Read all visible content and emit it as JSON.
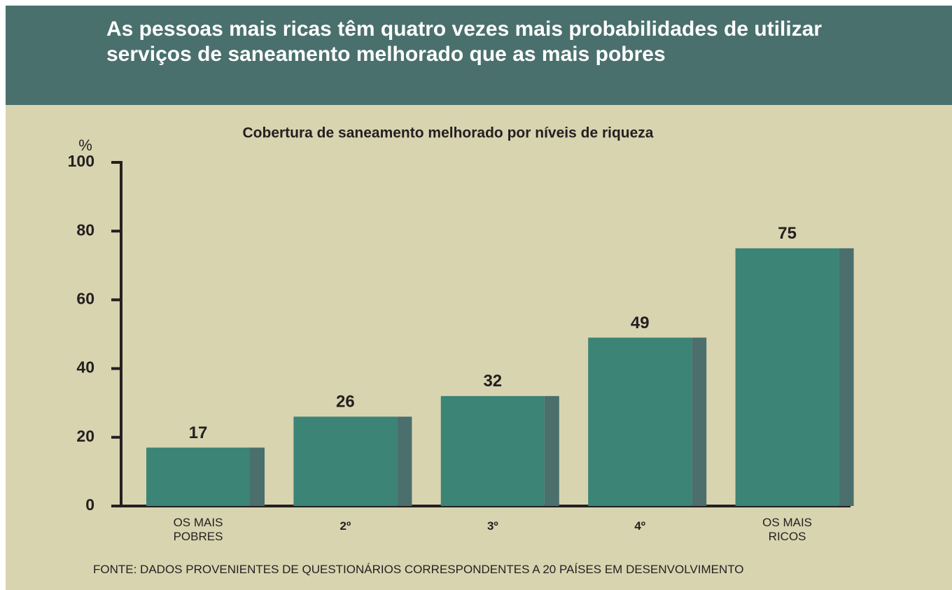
{
  "chart_data": {
    "type": "bar",
    "title": "As pessoas mais ricas têm quatro vezes mais probabilidades de utilizar serviços de saneamento melhorado que as mais pobres",
    "subtitle": "Cobertura de saneamento melhorado por níveis de riqueza",
    "y_label": "%",
    "categories": [
      "OS MAIS POBRES",
      "2º",
      "3º",
      "4º",
      "OS MAIS RICOS"
    ],
    "values": [
      17,
      26,
      32,
      49,
      75
    ],
    "color": "#3b8476",
    "side_color": "#4a6f6c",
    "ylim": [
      0,
      100
    ],
    "yticks": [
      0,
      20,
      40,
      60,
      80,
      100
    ],
    "source": "FONTE: DADOS PROVENIENTES DE QUESTIONÁRIOS CORRESPONDENTES A 20 PAÍSES EM DESENVOLVIMENTO"
  }
}
